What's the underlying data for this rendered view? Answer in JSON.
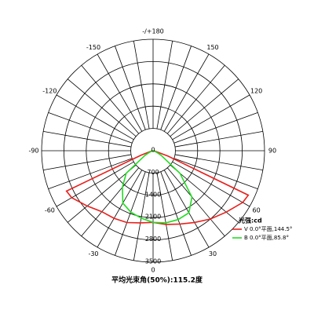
{
  "chart_data": {
    "type": "polar",
    "rlim": [
      0,
      3500
    ],
    "rticks": [
      0,
      700,
      1400,
      2100,
      2800,
      3500
    ],
    "angle_ticks": [
      {
        "value": 180,
        "label": "-/+180"
      },
      -150,
      -120,
      -90,
      -60,
      -30,
      0,
      30,
      60,
      90,
      120,
      150
    ],
    "legend_title": "光强:cd",
    "x": [
      -90,
      -80,
      -70,
      -65,
      -60,
      -50,
      -40,
      -30,
      -20,
      -10,
      0,
      10,
      20,
      30,
      40,
      50,
      60,
      65,
      70,
      80,
      90
    ],
    "series": [
      {
        "name": "V 0.0°平面,144.5°",
        "color": "#e8201c",
        "values": [
          0,
          50,
          400,
          3000,
          2950,
          2700,
          2500,
          2450,
          2400,
          2300,
          2250,
          2350,
          2450,
          2600,
          2800,
          3000,
          3250,
          3300,
          500,
          50,
          0
        ]
      },
      {
        "name": "B 0.0°平面,85.8°",
        "color": "#22dd22",
        "values": [
          0,
          0,
          50,
          150,
          300,
          1100,
          1500,
          1900,
          2050,
          2150,
          2250,
          2300,
          2300,
          2250,
          1900,
          1100,
          300,
          150,
          50,
          0,
          0
        ]
      }
    ],
    "caption": "平均光束角(50%):115.2度"
  }
}
